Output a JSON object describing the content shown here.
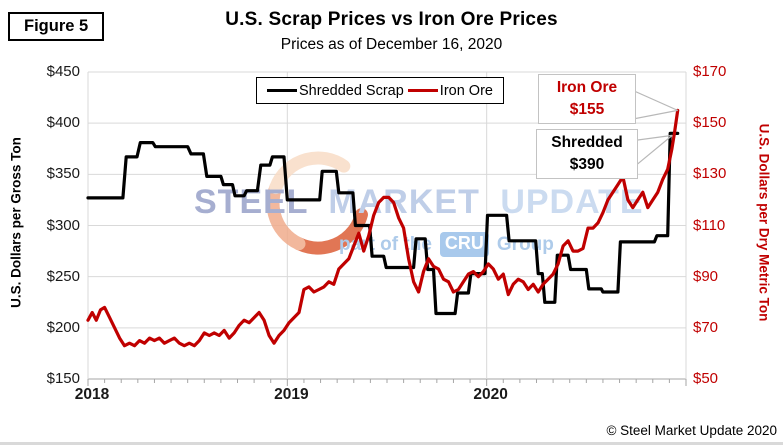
{
  "figure_label": "Figure 5",
  "title": "U.S. Scrap Prices vs Iron Ore Prices",
  "subtitle": "Prices as of December 16, 2020",
  "watermark": {
    "word1": "STEEL",
    "word2": "MARKET",
    "word3": "UPDATE",
    "tagline_prefix": "part of the",
    "tagline_chip": "CRU",
    "tagline_suffix": "Group"
  },
  "legend": {
    "items": [
      "Shredded Scrap",
      "Iron Ore"
    ]
  },
  "annotations": {
    "iron_ore": {
      "line1": "Iron Ore",
      "line2": "$155"
    },
    "shredded": {
      "line1": "Shredded",
      "line2": "$390"
    }
  },
  "footer": {
    "copyright": "© Steel Market Update 2020"
  },
  "colors": {
    "scrap_line": "#000000",
    "iron_line": "#C00000",
    "right_axis_text": "#C00000",
    "gridline": "#D9D9D9",
    "axis_line": "#A6A6A6",
    "leader_line": "#B8B8B8",
    "watermark_steel": "#A6AED0",
    "watermark_market": "#BFCEE8",
    "watermark_update": "#CBDBF0",
    "cru_chip_bg": "#A8C9EC",
    "crescent_light": "#F8DCC6",
    "crescent_mid": "#F0AC8C",
    "crescent_deep": "#DC5F38"
  },
  "chart_data": {
    "type": "line",
    "title": "U.S. Scrap Prices vs Iron Ore Prices",
    "subtitle": "Prices as of December 16, 2020",
    "x_unit": "months since Jan 2018 (weekly data, Jan 2018 – Dec 16 2020)",
    "x_axis": {
      "range_months": [
        0,
        36
      ],
      "tick_labels": [
        "2018",
        "2019",
        "2020"
      ],
      "tick_months": [
        0,
        12,
        24
      ],
      "minor_tick_interval_months": 1
    },
    "left_axis": {
      "title": "U.S. Dollars per Gross Ton",
      "tick_labels": [
        "$450",
        "$400",
        "$350",
        "$300",
        "$250",
        "$200",
        "$150"
      ],
      "range": [
        150,
        450
      ]
    },
    "right_axis": {
      "title": "U.S. Dollars per Dry Metric Ton",
      "tick_labels": [
        "$170",
        "$150",
        "$130",
        "$110",
        "$90",
        "$70",
        "$50"
      ],
      "range": [
        50,
        170
      ]
    },
    "legend_position": "top-center",
    "grid": true,
    "series": [
      {
        "name": "Shredded Scrap",
        "axis": "left",
        "color": "#000000",
        "final_label": "Shredded $390",
        "points": [
          [
            0,
            327
          ],
          [
            2.1,
            327
          ],
          [
            2.3,
            367
          ],
          [
            2.95,
            367
          ],
          [
            3.15,
            381
          ],
          [
            3.9,
            381
          ],
          [
            4.05,
            377
          ],
          [
            6.0,
            377
          ],
          [
            6.2,
            370
          ],
          [
            6.95,
            370
          ],
          [
            7.15,
            348
          ],
          [
            8.0,
            348
          ],
          [
            8.15,
            340
          ],
          [
            8.7,
            340
          ],
          [
            8.85,
            329
          ],
          [
            9.4,
            329
          ],
          [
            9.55,
            334
          ],
          [
            10.2,
            334
          ],
          [
            10.4,
            359
          ],
          [
            10.95,
            359
          ],
          [
            11.1,
            367
          ],
          [
            11.8,
            367
          ],
          [
            12.0,
            325
          ],
          [
            13.95,
            325
          ],
          [
            14.1,
            353
          ],
          [
            14.95,
            353
          ],
          [
            15.1,
            332
          ],
          [
            15.95,
            332
          ],
          [
            16.1,
            300
          ],
          [
            16.95,
            300
          ],
          [
            17.1,
            270
          ],
          [
            17.8,
            270
          ],
          [
            17.95,
            259
          ],
          [
            19.6,
            259
          ],
          [
            19.75,
            287
          ],
          [
            20.3,
            287
          ],
          [
            20.45,
            257
          ],
          [
            20.8,
            257
          ],
          [
            20.95,
            214
          ],
          [
            22.1,
            214
          ],
          [
            22.25,
            234
          ],
          [
            22.9,
            234
          ],
          [
            23.05,
            253
          ],
          [
            23.9,
            253
          ],
          [
            24.05,
            310
          ],
          [
            25.2,
            310
          ],
          [
            25.35,
            285
          ],
          [
            26.95,
            285
          ],
          [
            27.1,
            253
          ],
          [
            27.35,
            253
          ],
          [
            27.5,
            225
          ],
          [
            28.1,
            225
          ],
          [
            28.25,
            271
          ],
          [
            28.9,
            271
          ],
          [
            29.05,
            257
          ],
          [
            30.0,
            257
          ],
          [
            30.15,
            238
          ],
          [
            30.9,
            238
          ],
          [
            31.0,
            235
          ],
          [
            31.9,
            235
          ],
          [
            32.05,
            284
          ],
          [
            34.1,
            284
          ],
          [
            34.25,
            290
          ],
          [
            34.9,
            290
          ],
          [
            35.05,
            390
          ],
          [
            35.5,
            390
          ]
        ]
      },
      {
        "name": "Iron Ore",
        "axis": "right",
        "color": "#C00000",
        "final_label": "Iron Ore $155",
        "points": [
          [
            0,
            73
          ],
          [
            0.25,
            76
          ],
          [
            0.5,
            73
          ],
          [
            0.75,
            77
          ],
          [
            1.0,
            78
          ],
          [
            1.3,
            74
          ],
          [
            1.6,
            70
          ],
          [
            1.9,
            66
          ],
          [
            2.2,
            63
          ],
          [
            2.5,
            64
          ],
          [
            2.8,
            63
          ],
          [
            3.1,
            65
          ],
          [
            3.4,
            64
          ],
          [
            3.7,
            66
          ],
          [
            4.0,
            65
          ],
          [
            4.3,
            66
          ],
          [
            4.6,
            64
          ],
          [
            4.9,
            65
          ],
          [
            5.2,
            66
          ],
          [
            5.5,
            64
          ],
          [
            5.8,
            63
          ],
          [
            6.1,
            64
          ],
          [
            6.4,
            63
          ],
          [
            6.7,
            65
          ],
          [
            7.0,
            68
          ],
          [
            7.3,
            67
          ],
          [
            7.6,
            68
          ],
          [
            7.9,
            67
          ],
          [
            8.2,
            69
          ],
          [
            8.5,
            66
          ],
          [
            8.8,
            68
          ],
          [
            9.1,
            71
          ],
          [
            9.4,
            73
          ],
          [
            9.7,
            72
          ],
          [
            10.0,
            74
          ],
          [
            10.3,
            76
          ],
          [
            10.6,
            73
          ],
          [
            10.9,
            67
          ],
          [
            11.2,
            64
          ],
          [
            11.5,
            67
          ],
          [
            11.8,
            69
          ],
          [
            12.1,
            72
          ],
          [
            12.4,
            74
          ],
          [
            12.7,
            76
          ],
          [
            13.0,
            85
          ],
          [
            13.3,
            86
          ],
          [
            13.6,
            84
          ],
          [
            13.9,
            85
          ],
          [
            14.2,
            86
          ],
          [
            14.5,
            88
          ],
          [
            14.8,
            87
          ],
          [
            15.1,
            93
          ],
          [
            15.4,
            95
          ],
          [
            15.7,
            97
          ],
          [
            16.0,
            102
          ],
          [
            16.3,
            107
          ],
          [
            16.6,
            100
          ],
          [
            16.9,
            106
          ],
          [
            17.2,
            114
          ],
          [
            17.5,
            119
          ],
          [
            17.8,
            121
          ],
          [
            18.1,
            121
          ],
          [
            18.4,
            119
          ],
          [
            18.7,
            113
          ],
          [
            19.0,
            109
          ],
          [
            19.3,
            97
          ],
          [
            19.6,
            88
          ],
          [
            19.9,
            84
          ],
          [
            20.2,
            92
          ],
          [
            20.5,
            97
          ],
          [
            20.8,
            94
          ],
          [
            21.1,
            93
          ],
          [
            21.4,
            89
          ],
          [
            21.7,
            88
          ],
          [
            22.0,
            84
          ],
          [
            22.3,
            85
          ],
          [
            22.6,
            88
          ],
          [
            22.9,
            91
          ],
          [
            23.2,
            92
          ],
          [
            23.5,
            90
          ],
          [
            23.8,
            92
          ],
          [
            24.1,
            95
          ],
          [
            24.4,
            93
          ],
          [
            24.7,
            89
          ],
          [
            25.0,
            91
          ],
          [
            25.3,
            83
          ],
          [
            25.6,
            87
          ],
          [
            25.9,
            89
          ],
          [
            26.2,
            88
          ],
          [
            26.5,
            85
          ],
          [
            26.8,
            87
          ],
          [
            27.1,
            84
          ],
          [
            27.4,
            87
          ],
          [
            27.7,
            89
          ],
          [
            28.0,
            91
          ],
          [
            28.3,
            95
          ],
          [
            28.6,
            102
          ],
          [
            28.9,
            104
          ],
          [
            29.2,
            100
          ],
          [
            29.5,
            100
          ],
          [
            29.8,
            101
          ],
          [
            30.1,
            109
          ],
          [
            30.4,
            109
          ],
          [
            30.7,
            111
          ],
          [
            31.0,
            115
          ],
          [
            31.3,
            120
          ],
          [
            31.6,
            123
          ],
          [
            31.9,
            126
          ],
          [
            32.2,
            129
          ],
          [
            32.5,
            120
          ],
          [
            32.8,
            117
          ],
          [
            33.1,
            120
          ],
          [
            33.4,
            123
          ],
          [
            33.7,
            117
          ],
          [
            34.0,
            120
          ],
          [
            34.3,
            123
          ],
          [
            34.6,
            128
          ],
          [
            34.9,
            132
          ],
          [
            35.15,
            140
          ],
          [
            35.3,
            146
          ],
          [
            35.5,
            155
          ]
        ]
      }
    ]
  }
}
